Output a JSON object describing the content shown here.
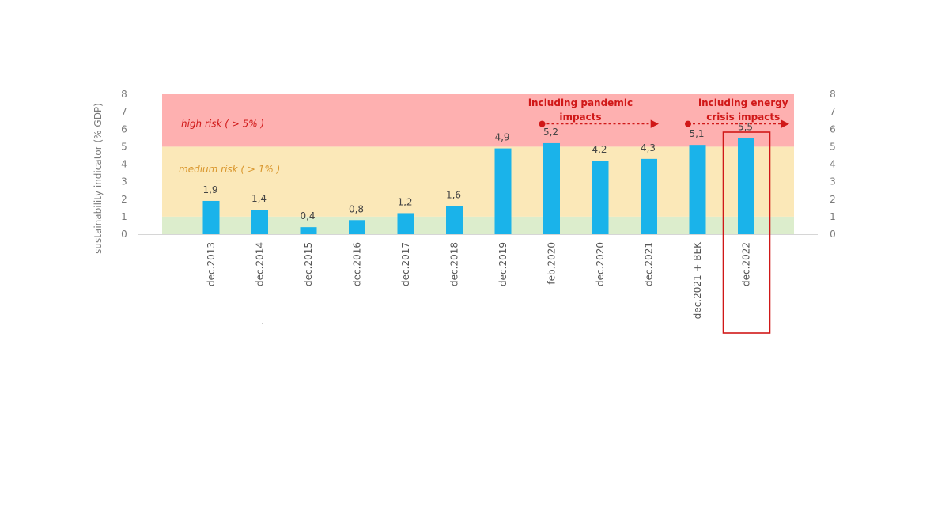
{
  "chart_data": {
    "type": "bar",
    "ylabel": "sustainability indicator (% GDP)",
    "ylim": [
      0,
      8
    ],
    "yticks": [
      0,
      1,
      2,
      3,
      4,
      5,
      6,
      7,
      8
    ],
    "categories": [
      "dec.2013",
      "dec.2014",
      "dec.2015",
      "dec.2016",
      "dec.2017",
      "dec.2018",
      "dec.2019",
      "feb.2020",
      "dec.2020",
      "dec.2021",
      "dec.2021 + BEK",
      "dec.2022"
    ],
    "values": [
      1.9,
      1.4,
      0.4,
      0.8,
      1.2,
      1.6,
      4.9,
      5.2,
      4.2,
      4.3,
      5.1,
      5.5
    ],
    "value_labels": [
      "1,9",
      "1,4",
      "0,4",
      "0,8",
      "1,2",
      "1,6",
      "4,9",
      "5,2",
      "4,2",
      "4,3",
      "5,1",
      "5,5"
    ],
    "bar_color": "#1ab3ea",
    "bands": [
      {
        "label": "",
        "from": 0,
        "to": 1,
        "color": "#dcedcc"
      },
      {
        "label": "medium risk ( > 1% )",
        "from": 1,
        "to": 5,
        "color": "#fbe8b8",
        "text_color": "#d9962c"
      },
      {
        "label": "high risk ( > 5% )",
        "from": 5,
        "to": 8,
        "color": "#feb0b0",
        "text_color": "#d01818"
      }
    ],
    "annotations": [
      {
        "lines": [
          "including pandemic",
          "impacts"
        ],
        "from_category": "feb.2020",
        "to_category": "dec.2021"
      },
      {
        "lines": [
          "including energy",
          "crisis impacts"
        ],
        "from_category": "dec.2021 + BEK",
        "to_category": "dec.2022"
      }
    ],
    "highlight_category": "dec.2022",
    "accent_color": "#d01818"
  },
  "stray_mark": "."
}
